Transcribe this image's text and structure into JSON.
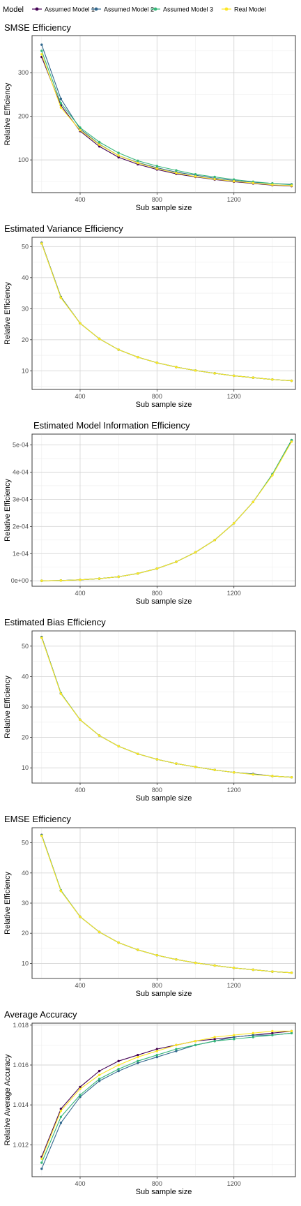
{
  "legend": {
    "title": "Model",
    "items": [
      {
        "name": "Assumed Model 1",
        "color": "#440154"
      },
      {
        "name": "Assumed Model 2",
        "color": "#31688E"
      },
      {
        "name": "Assumed Model 3",
        "color": "#35B779"
      },
      {
        "name": "Real Model",
        "color": "#FDE725"
      }
    ],
    "placement": "top"
  },
  "chart_data": [
    {
      "type": "line",
      "title": "SMSE Efficiency",
      "xlabel": "Sub sample size",
      "ylabel": "Relative Efficiency",
      "xlim": [
        150,
        1520
      ],
      "ylim": [
        25,
        385
      ],
      "xticks": [
        400,
        800,
        1200
      ],
      "xtick_labels": [
        "400",
        "800",
        "1200"
      ],
      "yticks": [
        100,
        200,
        300
      ],
      "ytick_labels": [
        "100",
        "200",
        "300"
      ],
      "grid": true,
      "x": [
        200,
        300,
        400,
        500,
        600,
        700,
        800,
        900,
        1000,
        1100,
        1200,
        1300,
        1400,
        1500
      ],
      "series": [
        {
          "name": "Assumed Model 1",
          "values": [
            336,
            225,
            166,
            131,
            106,
            90,
            78,
            68,
            61,
            55,
            50,
            46,
            42,
            40
          ]
        },
        {
          "name": "Assumed Model 2",
          "values": [
            364,
            240,
            171,
            136,
            110,
            94,
            82,
            72,
            65,
            58,
            53,
            49,
            46,
            44
          ]
        },
        {
          "name": "Assumed Model 3",
          "values": [
            350,
            230,
            174,
            141,
            116,
            98,
            86,
            76,
            67,
            61,
            55,
            50,
            46,
            43
          ]
        },
        {
          "name": "Real Model",
          "values": [
            342,
            220,
            168,
            135,
            110,
            93,
            80,
            70,
            62,
            56,
            51,
            47,
            43,
            41
          ]
        }
      ]
    },
    {
      "type": "line",
      "title": "Estimated Variance Efficiency",
      "xlabel": "Sub sample size",
      "ylabel": "Relative Efficiency",
      "xlim": [
        150,
        1520
      ],
      "ylim": [
        4,
        53
      ],
      "xticks": [
        400,
        800,
        1200
      ],
      "xtick_labels": [
        "400",
        "800",
        "1200"
      ],
      "yticks": [
        10,
        20,
        30,
        40,
        50
      ],
      "ytick_labels": [
        "10",
        "20",
        "30",
        "40",
        "50"
      ],
      "grid": true,
      "x": [
        200,
        300,
        400,
        500,
        600,
        700,
        800,
        900,
        1000,
        1100,
        1200,
        1300,
        1400,
        1500
      ],
      "series": [
        {
          "name": "Assumed Model 1",
          "values": [
            51.2,
            33.8,
            25.3,
            20.3,
            16.8,
            14.4,
            12.6,
            11.2,
            10.1,
            9.2,
            8.4,
            7.8,
            7.2,
            6.8
          ]
        },
        {
          "name": "Assumed Model 2",
          "values": [
            51.0,
            33.6,
            25.3,
            20.3,
            16.8,
            14.4,
            12.6,
            11.2,
            10.1,
            9.2,
            8.4,
            7.8,
            7.2,
            6.8
          ]
        },
        {
          "name": "Assumed Model 3",
          "values": [
            51.1,
            33.7,
            25.3,
            20.3,
            16.8,
            14.4,
            12.6,
            11.2,
            10.1,
            9.2,
            8.4,
            7.8,
            7.2,
            6.8
          ]
        },
        {
          "name": "Real Model",
          "values": [
            51.0,
            33.5,
            25.3,
            20.3,
            16.8,
            14.4,
            12.6,
            11.2,
            10.1,
            9.2,
            8.4,
            7.8,
            7.2,
            6.8
          ]
        }
      ]
    },
    {
      "type": "line",
      "title": "Estimated Model Information Efficiency",
      "xlabel": "Sub sample size",
      "ylabel": "Relative Efficiency",
      "xlim": [
        150,
        1520
      ],
      "ylim": [
        -2e-05,
        0.00054
      ],
      "xticks": [
        400,
        800,
        1200
      ],
      "xtick_labels": [
        "400",
        "800",
        "1200"
      ],
      "yticks": [
        0,
        0.0001,
        0.0002,
        0.0003,
        0.0004,
        0.0005
      ],
      "ytick_labels": [
        "0e+00",
        "1e-04",
        "2e-04",
        "3e-04",
        "4e-04",
        "5e-04"
      ],
      "grid": true,
      "x": [
        200,
        300,
        400,
        500,
        600,
        700,
        800,
        900,
        1000,
        1100,
        1200,
        1300,
        1400,
        1500
      ],
      "series": [
        {
          "name": "Assumed Model 1",
          "values": [
            2e-07,
            1.2e-06,
            3.5e-06,
            8e-06,
            1.5e-05,
            2.7e-05,
            4.5e-05,
            7e-05,
            0.000105,
            0.00015,
            0.000212,
            0.00029,
            0.00039,
            0.000515
          ]
        },
        {
          "name": "Assumed Model 2",
          "values": [
            2e-07,
            1.2e-06,
            3.5e-06,
            8e-06,
            1.5e-05,
            2.7e-05,
            4.5e-05,
            7e-05,
            0.000105,
            0.00015,
            0.000212,
            0.00029,
            0.000392,
            0.000518
          ]
        },
        {
          "name": "Assumed Model 3",
          "values": [
            2e-07,
            1.2e-06,
            3.5e-06,
            8e-06,
            1.5e-05,
            2.7e-05,
            4.5e-05,
            7e-05,
            0.000105,
            0.00015,
            0.000212,
            0.00029,
            0.000392,
            0.000518
          ]
        },
        {
          "name": "Real Model",
          "values": [
            2e-07,
            1.2e-06,
            3.5e-06,
            8e-06,
            1.5e-05,
            2.7e-05,
            4.5e-05,
            7e-05,
            0.000105,
            0.00015,
            0.000212,
            0.00029,
            0.000388,
            0.000512
          ]
        }
      ]
    },
    {
      "type": "line",
      "title": "Estimated Bias Efficiency",
      "xlabel": "Sub sample size",
      "ylabel": "Relative Efficiency",
      "xlim": [
        150,
        1520
      ],
      "ylim": [
        5,
        55
      ],
      "xticks": [
        400,
        800,
        1200
      ],
      "xtick_labels": [
        "400",
        "800",
        "1200"
      ],
      "yticks": [
        10,
        20,
        30,
        40,
        50
      ],
      "ytick_labels": [
        "10",
        "20",
        "30",
        "40",
        "50"
      ],
      "grid": true,
      "x": [
        200,
        300,
        400,
        500,
        600,
        700,
        800,
        900,
        1000,
        1100,
        1200,
        1300,
        1400,
        1500
      ],
      "series": [
        {
          "name": "Assumed Model 1",
          "values": [
            53.0,
            34.5,
            25.8,
            20.6,
            17.1,
            14.6,
            12.8,
            11.4,
            10.3,
            9.3,
            8.5,
            8.0,
            7.3,
            6.9
          ]
        },
        {
          "name": "Assumed Model 2",
          "values": [
            52.8,
            34.4,
            25.8,
            20.6,
            17.1,
            14.6,
            12.8,
            11.4,
            10.3,
            9.3,
            8.5,
            7.9,
            7.3,
            6.9
          ]
        },
        {
          "name": "Assumed Model 3",
          "values": [
            52.9,
            34.5,
            25.8,
            20.6,
            17.1,
            14.6,
            12.8,
            11.4,
            10.3,
            9.3,
            8.5,
            7.9,
            7.3,
            6.9
          ]
        },
        {
          "name": "Real Model",
          "values": [
            52.7,
            34.3,
            25.8,
            20.6,
            17.1,
            14.6,
            12.8,
            11.4,
            10.3,
            9.3,
            8.5,
            7.8,
            7.3,
            6.9
          ]
        }
      ]
    },
    {
      "type": "line",
      "title": "EMSE Efficiency",
      "xlabel": "Sub sample size",
      "ylabel": "Relative Efficiency",
      "xlim": [
        150,
        1520
      ],
      "ylim": [
        5,
        55
      ],
      "xticks": [
        400,
        800,
        1200
      ],
      "xtick_labels": [
        "400",
        "800",
        "1200"
      ],
      "yticks": [
        10,
        20,
        30,
        40,
        50
      ],
      "ytick_labels": [
        "10",
        "20",
        "30",
        "40",
        "50"
      ],
      "grid": true,
      "x": [
        200,
        300,
        400,
        500,
        600,
        700,
        800,
        900,
        1000,
        1100,
        1200,
        1300,
        1400,
        1500
      ],
      "series": [
        {
          "name": "Assumed Model 1",
          "values": [
            52.6,
            34.2,
            25.5,
            20.4,
            16.9,
            14.5,
            12.7,
            11.3,
            10.2,
            9.3,
            8.5,
            7.9,
            7.3,
            6.9
          ]
        },
        {
          "name": "Assumed Model 2",
          "values": [
            52.4,
            34.1,
            25.5,
            20.4,
            16.9,
            14.5,
            12.7,
            11.3,
            10.2,
            9.3,
            8.5,
            7.9,
            7.3,
            6.9
          ]
        },
        {
          "name": "Assumed Model 3",
          "values": [
            52.5,
            34.2,
            25.5,
            20.4,
            16.9,
            14.5,
            12.7,
            11.3,
            10.2,
            9.3,
            8.5,
            7.9,
            7.3,
            6.9
          ]
        },
        {
          "name": "Real Model",
          "values": [
            52.3,
            34.0,
            25.5,
            20.4,
            16.9,
            14.5,
            12.7,
            11.3,
            10.2,
            9.3,
            8.5,
            7.9,
            7.3,
            6.9
          ]
        }
      ]
    },
    {
      "type": "line",
      "title": "Average Accuracy",
      "xlabel": "Sub sample size",
      "ylabel": "Relative Average Accuracy",
      "xlim": [
        150,
        1520
      ],
      "ylim": [
        1.0104,
        1.0181
      ],
      "xticks": [
        400,
        800,
        1200
      ],
      "xtick_labels": [
        "400",
        "800",
        "1200"
      ],
      "yticks": [
        1.012,
        1.014,
        1.016,
        1.018
      ],
      "ytick_labels": [
        "1.012",
        "1.014",
        "1.016",
        "1.018"
      ],
      "grid": true,
      "x": [
        200,
        300,
        400,
        500,
        600,
        700,
        800,
        900,
        1000,
        1100,
        1200,
        1300,
        1400,
        1500
      ],
      "series": [
        {
          "name": "Assumed Model 1",
          "values": [
            1.0114,
            1.0138,
            1.0149,
            1.0157,
            1.0162,
            1.0165,
            1.0168,
            1.017,
            1.0172,
            1.0173,
            1.0174,
            1.0175,
            1.0176,
            1.0177
          ]
        },
        {
          "name": "Assumed Model 2",
          "values": [
            1.0108,
            1.0131,
            1.0144,
            1.0152,
            1.0157,
            1.0161,
            1.0164,
            1.0167,
            1.017,
            1.0172,
            1.0174,
            1.0175,
            1.0175,
            1.0176
          ]
        },
        {
          "name": "Assumed Model 3",
          "values": [
            1.0111,
            1.0134,
            1.0145,
            1.0153,
            1.0158,
            1.0162,
            1.0165,
            1.0168,
            1.017,
            1.0172,
            1.0173,
            1.0174,
            1.0175,
            1.0176
          ]
        },
        {
          "name": "Real Model",
          "values": [
            1.0113,
            1.0137,
            1.0148,
            1.0155,
            1.016,
            1.0164,
            1.0167,
            1.017,
            1.0172,
            1.0174,
            1.0175,
            1.0176,
            1.0177,
            1.0177
          ]
        }
      ]
    }
  ]
}
